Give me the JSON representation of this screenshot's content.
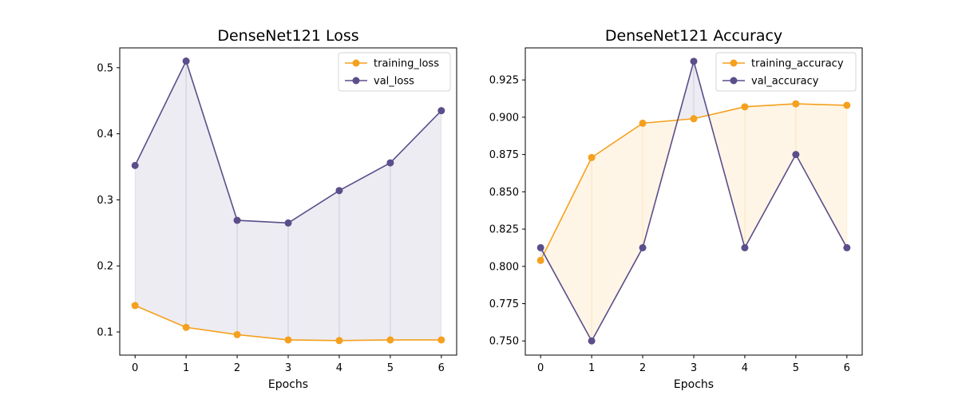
{
  "chart_data": [
    {
      "type": "line",
      "title": "DenseNet121 Loss",
      "xlabel": "Epochs",
      "ylabel": "",
      "x": [
        0,
        1,
        2,
        3,
        4,
        5,
        6
      ],
      "xlim": [
        -0.3,
        6.3
      ],
      "ylim": [
        0.065,
        0.53
      ],
      "yticks": [
        0.1,
        0.2,
        0.3,
        0.4,
        0.5
      ],
      "ytick_labels": [
        "0.1",
        "0.2",
        "0.3",
        "0.4",
        "0.5"
      ],
      "xtick_labels": [
        "0",
        "1",
        "2",
        "3",
        "4",
        "5",
        "6"
      ],
      "legend_loc": "upper right",
      "series": [
        {
          "name": "training_loss",
          "color": "#f5a01e",
          "values": [
            0.14,
            0.107,
            0.096,
            0.088,
            0.087,
            0.088,
            0.088
          ]
        },
        {
          "name": "val_loss",
          "color": "#5b4e8a",
          "values": [
            0.352,
            0.51,
            0.269,
            0.265,
            0.314,
            0.356,
            0.435
          ]
        }
      ],
      "fill_color": "#5b4e8a"
    },
    {
      "type": "line",
      "title": "DenseNet121 Accuracy",
      "xlabel": "Epochs",
      "ylabel": "",
      "x": [
        0,
        1,
        2,
        3,
        4,
        5,
        6
      ],
      "xlim": [
        -0.3,
        6.3
      ],
      "ylim": [
        0.7405,
        0.9465
      ],
      "yticks": [
        0.75,
        0.775,
        0.8,
        0.825,
        0.85,
        0.875,
        0.9,
        0.925
      ],
      "ytick_labels": [
        "0.750",
        "0.775",
        "0.800",
        "0.825",
        "0.850",
        "0.875",
        "0.900",
        "0.925"
      ],
      "xtick_labels": [
        "0",
        "1",
        "2",
        "3",
        "4",
        "5",
        "6"
      ],
      "legend_loc": "upper right",
      "series": [
        {
          "name": "training_accuracy",
          "color": "#f5a01e",
          "values": [
            0.804,
            0.873,
            0.896,
            0.899,
            0.907,
            0.909,
            0.908
          ]
        },
        {
          "name": "val_accuracy",
          "color": "#5b4e8a",
          "values": [
            0.8125,
            0.75,
            0.8125,
            0.9375,
            0.8125,
            0.875,
            0.8125
          ]
        }
      ]
    }
  ]
}
